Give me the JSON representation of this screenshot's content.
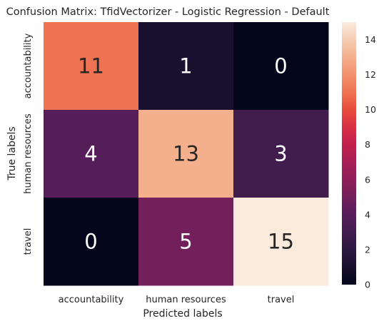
{
  "chart_data": {
    "type": "heatmap",
    "title": "Confusion Matrix: TfidVectorizer - Logistic Regression - Default",
    "xlabel": "Predicted labels",
    "ylabel": "True labels",
    "x_categories": [
      "accountability",
      "human resources",
      "travel"
    ],
    "y_categories": [
      "accountability",
      "human resources",
      "travel"
    ],
    "matrix": [
      [
        11,
        1,
        0
      ],
      [
        4,
        13,
        3
      ],
      [
        0,
        5,
        15
      ]
    ],
    "colorbar": {
      "range": [
        0,
        15
      ],
      "ticks": [
        0,
        2,
        4,
        6,
        8,
        10,
        12,
        14
      ]
    },
    "colormap": "rocket"
  }
}
